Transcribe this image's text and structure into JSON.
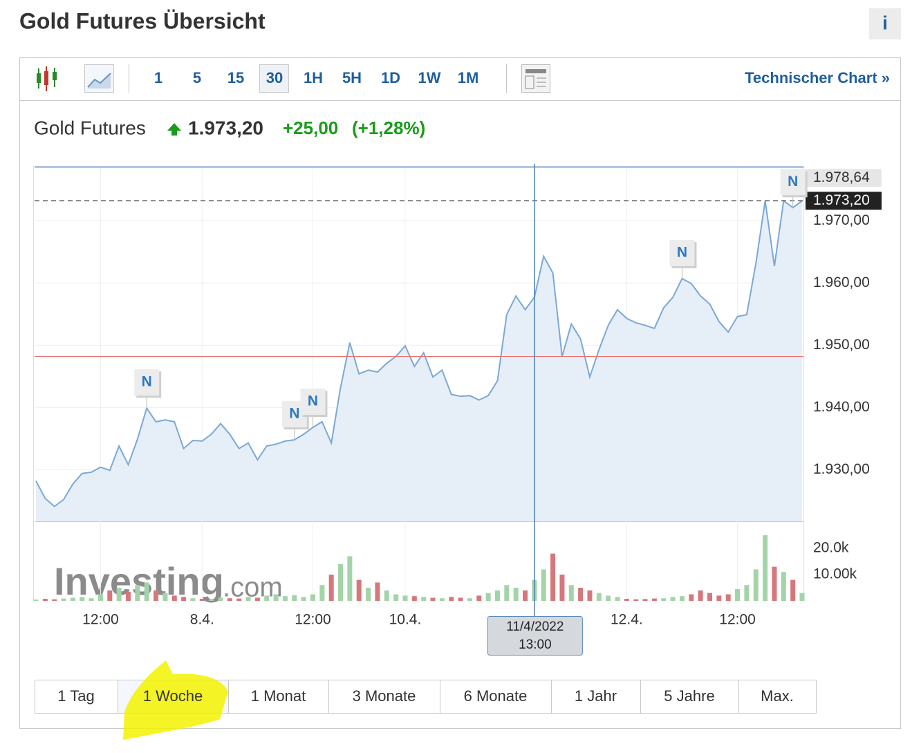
{
  "header": {
    "title": "Gold Futures Übersicht",
    "info": "i"
  },
  "toolbar": {
    "intervals": [
      "1",
      "5",
      "15",
      "30",
      "1H",
      "5H",
      "1D",
      "1W",
      "1M"
    ],
    "selected_interval": 3,
    "link": "Technischer Chart »"
  },
  "quote": {
    "name": "Gold Futures",
    "price": "1.973,20",
    "change": "+25,00",
    "change_pct": "(+1,28%)"
  },
  "chart_data": {
    "type": "line",
    "color": "#7aa8d6",
    "fill": "#e6eef7",
    "categories": [
      null,
      null,
      null,
      null,
      null,
      null,
      null,
      "12:00",
      null,
      null,
      null,
      null,
      null,
      null,
      null,
      null,
      null,
      null,
      "8.4.",
      null,
      null,
      null,
      null,
      null,
      null,
      null,
      null,
      null,
      null,
      null,
      "12:00",
      null,
      null,
      null,
      null,
      null,
      null,
      null,
      null,
      null,
      "10.4.",
      null,
      null,
      null,
      null,
      null,
      null,
      null,
      null,
      null,
      null,
      null,
      null,
      null,
      null,
      null,
      null,
      null,
      null,
      null,
      null,
      null,
      null,
      null,
      "12.4.",
      null,
      null,
      null,
      null,
      null,
      null,
      null,
      null,
      null,
      null,
      null,
      "12:00",
      null,
      null,
      null,
      null,
      null,
      null,
      null
    ],
    "values": [
      1928.2,
      1925.4,
      1924.1,
      1925.2,
      1927.7,
      1929.4,
      1929.6,
      1930.4,
      1929.9,
      1933.8,
      1930.8,
      1934.9,
      1939.9,
      1937.7,
      1938.0,
      1937.7,
      1933.4,
      1934.7,
      1934.6,
      1935.7,
      1937.4,
      1935.7,
      1933.4,
      1934.3,
      1931.6,
      1933.8,
      1934.1,
      1934.6,
      1934.8,
      1935.7,
      1936.8,
      1937.7,
      1934.3,
      1943.2,
      1950.4,
      1945.4,
      1946.0,
      1945.7,
      1947.1,
      1948.2,
      1949.9,
      1946.6,
      1948.8,
      1944.9,
      1946.0,
      1942.1,
      1941.8,
      1941.9,
      1941.2,
      1941.9,
      1944.3,
      1954.9,
      1957.9,
      1955.7,
      1957.7,
      1964.3,
      1961.6,
      1948.2,
      1953.4,
      1951.0,
      1944.9,
      1949.3,
      1953.2,
      1955.7,
      1954.3,
      1953.6,
      1953.2,
      1952.7,
      1956.0,
      1957.7,
      1960.7,
      1959.9,
      1957.9,
      1956.6,
      1953.8,
      1952.1,
      1954.6,
      1954.9,
      1963.2,
      1973.2,
      1962.7,
      1973.2,
      1972.1,
      1973.2
    ],
    "ylim": [
      1921.7,
      1978.8
    ],
    "yticks": [
      {
        "value": 1930,
        "label": "1.930,00"
      },
      {
        "value": 1940,
        "label": "1.940,00"
      },
      {
        "value": 1950,
        "label": "1.950,00"
      },
      {
        "value": 1960,
        "label": "1.960,00"
      },
      {
        "value": 1970,
        "label": "1.970,00"
      }
    ],
    "grid": true,
    "high": {
      "value": 1978.64,
      "label": "1.978,64"
    },
    "last": {
      "value": 1973.2,
      "label": "1.973,20"
    },
    "previous_close": 1948.2,
    "news_markers": [
      {
        "index": 12,
        "label": "N"
      },
      {
        "index": 28,
        "label": "N"
      },
      {
        "index": 30,
        "label": "N"
      },
      {
        "index": 70,
        "label": "N"
      },
      {
        "index": 82,
        "label": "N"
      }
    ],
    "crosshair": {
      "index": 54,
      "label": [
        "11/4/2022",
        "13:00"
      ]
    },
    "volume": {
      "type": "bar",
      "up_color": "#a3d4a8",
      "down_color": "#d6777b",
      "values": [
        500,
        800,
        600,
        900,
        1200,
        1500,
        1000,
        2500,
        4000,
        5000,
        3500,
        6000,
        7000,
        4000,
        3000,
        2000,
        1500,
        1000,
        800,
        600,
        1200,
        1000,
        900,
        1500,
        1200,
        2000,
        2500,
        1800,
        2200,
        1500,
        2500,
        6000,
        10000,
        14000,
        17000,
        8000,
        5000,
        7000,
        4000,
        2500,
        2000,
        1800,
        1500,
        1200,
        1000,
        1500,
        1200,
        1000,
        2000,
        3000,
        4000,
        6000,
        5000,
        4000,
        8000,
        12000,
        18000,
        10000,
        6000,
        5000,
        4000,
        3000,
        2000,
        1500,
        800,
        600,
        700,
        900,
        1000,
        1500,
        1800,
        2500,
        4000,
        3000,
        2000,
        2500,
        4500,
        6000,
        12000,
        25000,
        13000,
        11000,
        8000,
        3000
      ],
      "ylim": [
        0,
        29500
      ],
      "yticks": [
        {
          "value": 10000,
          "label": "10.00k"
        },
        {
          "value": 20000,
          "label": "20.0k"
        }
      ]
    },
    "watermark": [
      "Investing",
      ".com"
    ]
  },
  "range_buttons": {
    "labels": [
      "1 Tag",
      "1 Woche",
      "1 Monat",
      "3 Monate",
      "6 Monate",
      "1 Jahr",
      "5 Jahre",
      "Max."
    ],
    "selected": 1
  }
}
